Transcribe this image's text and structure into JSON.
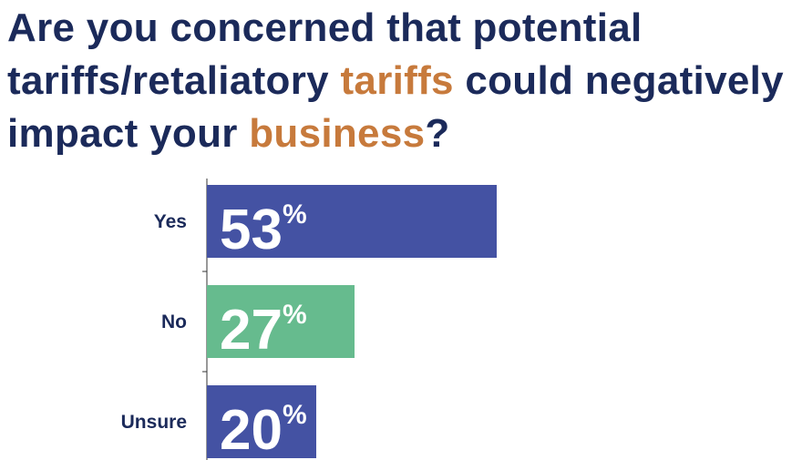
{
  "title": {
    "part1": "Are you concerned that potential tariffs/retaliatory ",
    "highlight1": "tariffs",
    "part2": " could negatively impact your ",
    "highlight2": "business",
    "part3": "?"
  },
  "colors": {
    "title": "#1b2a5a",
    "highlight": "#c77a3c",
    "axis": "#333333"
  },
  "chart_data": {
    "type": "bar",
    "orientation": "horizontal",
    "categories": [
      "Yes",
      "No",
      "Unsure"
    ],
    "values": [
      53,
      27,
      20
    ],
    "unit": "%",
    "colors": [
      "#4452a3",
      "#66bb8e",
      "#4452a3"
    ],
    "xlim": [
      0,
      100
    ],
    "grid": false,
    "legend": "none"
  }
}
